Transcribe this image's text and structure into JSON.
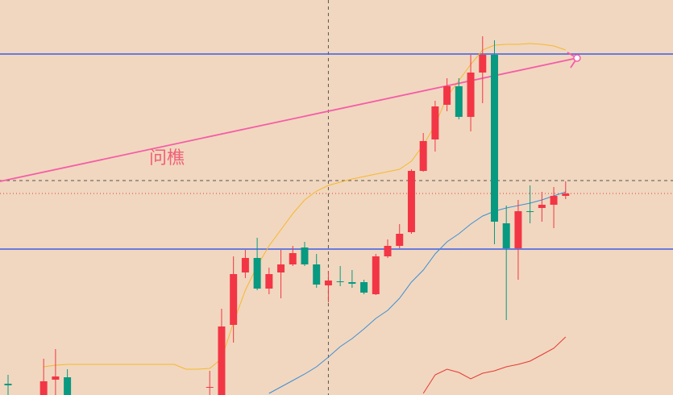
{
  "chart_data": {
    "type": "candlestick",
    "annotation": "问樵",
    "categories": [
      null,
      null,
      null,
      null,
      null,
      null,
      null,
      null,
      null,
      null,
      null,
      null,
      null,
      null,
      null,
      null,
      null,
      null,
      null,
      null,
      null,
      null,
      null,
      null,
      null,
      null,
      null,
      null,
      null,
      null,
      null,
      null,
      null,
      null,
      null,
      null,
      null,
      null,
      null,
      null,
      null,
      null,
      null,
      null,
      null,
      null,
      null,
      null
    ],
    "open": [
      14,
      null,
      null,
      0,
      19,
      22,
      null,
      null,
      null,
      null,
      null,
      null,
      null,
      null,
      null,
      null,
      null,
      9,
      0,
      87,
      152,
      170,
      132,
      152,
      162,
      183,
      162,
      136,
      141,
      140,
      140,
      125,
      172,
      185,
      202,
      278,
      317,
      360,
      383,
      345,
      400,
      422,
      213,
      182,
      228,
      232,
      236,
      247
    ],
    "high": [
      25,
      null,
      null,
      45,
      57,
      32,
      null,
      null,
      null,
      null,
      null,
      null,
      null,
      null,
      null,
      null,
      null,
      30,
      107,
      172,
      180,
      195,
      158,
      180,
      185,
      190,
      175,
      154,
      160,
      155,
      143,
      175,
      193,
      212,
      280,
      325,
      365,
      393,
      393,
      422,
      445,
      440,
      235,
      242,
      260,
      252,
      258,
      265
    ],
    "low": [
      0,
      null,
      null,
      0,
      0,
      0,
      null,
      null,
      null,
      null,
      null,
      null,
      null,
      null,
      null,
      null,
      null,
      0,
      0,
      65,
      145,
      130,
      125,
      120,
      160,
      160,
      133,
      115,
      135,
      133,
      125,
      124,
      170,
      182,
      200,
      277,
      302,
      352,
      342,
      327,
      362,
      187,
      93,
      143,
      213,
      215,
      207,
      243
    ],
    "close": [
      12,
      null,
      null,
      17,
      23,
      0,
      null,
      null,
      null,
      null,
      null,
      null,
      null,
      null,
      null,
      null,
      null,
      10,
      85,
      150,
      170,
      132,
      150,
      162,
      176,
      162,
      137,
      142,
      141,
      138,
      127,
      172,
      185,
      200,
      278,
      315,
      358,
      383,
      345,
      400,
      422,
      215,
      182,
      228,
      227,
      236,
      247,
      250
    ],
    "up_color": "#f23645",
    "down_color": "#089981",
    "series": [
      {
        "color": "#f5b82e",
        "values": [
          null,
          null,
          null,
          35,
          37,
          38,
          38,
          38,
          38,
          38,
          38,
          38,
          38,
          38,
          38,
          32,
          32,
          33,
          45,
          90,
          130,
          160,
          185,
          205,
          225,
          242,
          253,
          260,
          264,
          268,
          271,
          274,
          277,
          280,
          290,
          310,
          335,
          370,
          390,
          410,
          428,
          434,
          435,
          435,
          436,
          435,
          433,
          428
        ]
      },
      {
        "color": "#3d8fd6",
        "values": [
          null,
          null,
          null,
          null,
          null,
          null,
          null,
          null,
          null,
          null,
          null,
          null,
          null,
          null,
          null,
          null,
          null,
          null,
          null,
          null,
          null,
          null,
          2,
          10,
          18,
          26,
          35,
          47,
          60,
          70,
          82,
          95,
          105,
          120,
          140,
          155,
          175,
          190,
          200,
          212,
          222,
          228,
          232,
          235,
          238,
          242,
          247,
          252
        ]
      },
      {
        "color": "#e53935",
        "values": [
          null,
          null,
          null,
          null,
          null,
          null,
          null,
          null,
          null,
          null,
          null,
          null,
          null,
          null,
          null,
          null,
          null,
          null,
          null,
          null,
          null,
          null,
          null,
          null,
          null,
          null,
          null,
          null,
          null,
          null,
          null,
          null,
          null,
          null,
          null,
          2,
          25,
          32,
          28,
          20,
          27,
          30,
          35,
          38,
          42,
          50,
          58,
          72
        ]
      }
    ],
    "hlines": [
      423,
      181
    ],
    "hline_color": "#3a5ee8",
    "trendline": {
      "x": [
        -0.68,
        47.96
      ],
      "values": [
        265,
        418
      ],
      "color": "#f55ca8"
    },
    "crosshair": {
      "x": 27,
      "value": 266
    },
    "xlim": [
      -0.68,
      56.05
    ],
    "ylim": [
      0,
      490
    ]
  }
}
